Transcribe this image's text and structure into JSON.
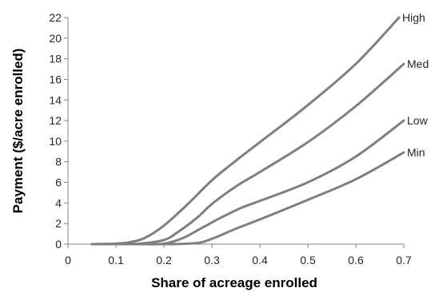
{
  "chart_data": {
    "type": "line",
    "title": "",
    "xlabel": "Share of acreage enrolled",
    "ylabel": "Payment ($/acre enrolled)",
    "xlim": [
      0,
      0.7
    ],
    "ylim": [
      0,
      22
    ],
    "xticks": [
      "0",
      "0.1",
      "0.2",
      "0.3",
      "0.4",
      "0.5",
      "0.6",
      "0.7"
    ],
    "yticks": [
      "0",
      "2",
      "4",
      "6",
      "8",
      "10",
      "12",
      "14",
      "16",
      "18",
      "20",
      "22"
    ],
    "grid": false,
    "legend": "inline labels at line ends",
    "line_color": "#7f7f7f",
    "series": [
      {
        "name": "High",
        "x": [
          0.05,
          0.1,
          0.13,
          0.16,
          0.2,
          0.25,
          0.3,
          0.35,
          0.4,
          0.5,
          0.6,
          0.69
        ],
        "y": [
          0,
          0.05,
          0.2,
          0.6,
          1.8,
          3.9,
          6.2,
          8.1,
          9.9,
          13.5,
          17.5,
          22
        ]
      },
      {
        "name": "Med",
        "x": [
          0.05,
          0.1,
          0.15,
          0.2,
          0.23,
          0.27,
          0.3,
          0.35,
          0.4,
          0.5,
          0.6,
          0.7
        ],
        "y": [
          0,
          0,
          0.05,
          0.4,
          1.2,
          2.6,
          3.9,
          5.6,
          7.0,
          9.9,
          13.4,
          17.5
        ]
      },
      {
        "name": "Low",
        "x": [
          0.05,
          0.15,
          0.2,
          0.24,
          0.28,
          0.32,
          0.36,
          0.4,
          0.5,
          0.6,
          0.7
        ],
        "y": [
          0,
          0,
          0.05,
          0.6,
          1.6,
          2.6,
          3.5,
          4.2,
          6.0,
          8.5,
          12.0
        ]
      },
      {
        "name": "Min",
        "x": [
          0.05,
          0.2,
          0.25,
          0.28,
          0.31,
          0.35,
          0.4,
          0.5,
          0.6,
          0.7
        ],
        "y": [
          0,
          0,
          0.05,
          0.2,
          0.7,
          1.5,
          2.4,
          4.3,
          6.3,
          8.9
        ]
      }
    ]
  }
}
